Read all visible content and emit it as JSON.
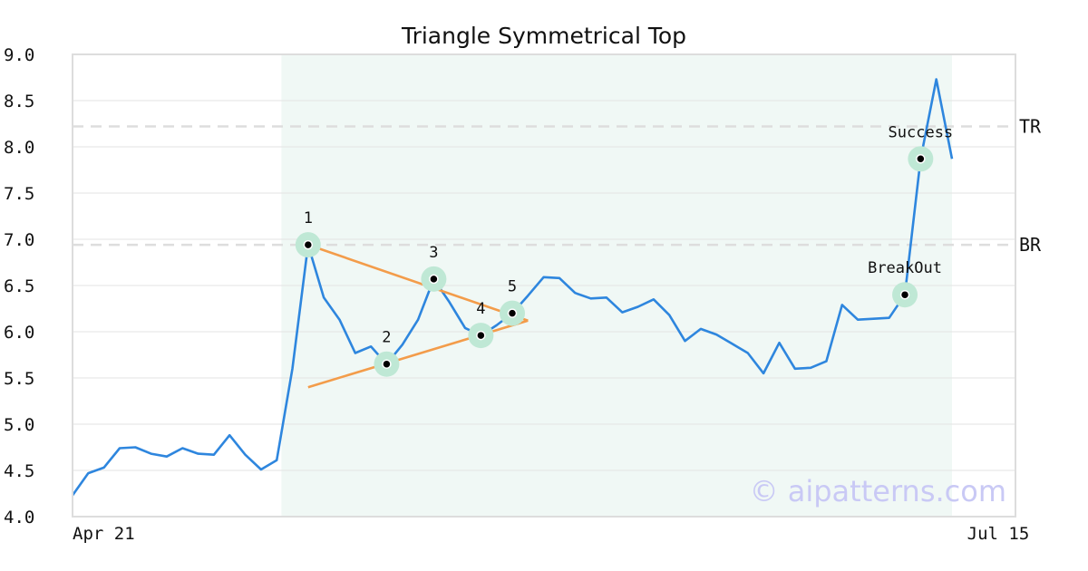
{
  "chart_data": {
    "type": "line",
    "title": "Triangle Symmetrical Top",
    "watermark": "© aipatterns.com",
    "ylim": [
      4.0,
      9.0
    ],
    "y_ticks": [
      "9.0",
      "8.5",
      "8.0",
      "7.5",
      "7.0",
      "6.5",
      "6.0",
      "5.5",
      "5.0",
      "4.5",
      "4.0"
    ],
    "x_tick_labels": [
      {
        "label": "Apr 21",
        "index": 0
      },
      {
        "label": "Jul 15",
        "index": 57
      }
    ],
    "grid": true,
    "colors": {
      "line": "#2e86de",
      "trend": "#f39c4a",
      "highlight": "#e6f3ee",
      "refline": "#dddddd",
      "marker_ring": "#bfe8d5",
      "frame": "#dddddd"
    },
    "series": [
      {
        "values": [
          4.23,
          4.47,
          4.53,
          4.74,
          4.75,
          4.68,
          4.65,
          4.74,
          4.68,
          4.67,
          4.88,
          4.67,
          4.51,
          4.61,
          5.6,
          6.94,
          6.37,
          6.13,
          5.77,
          5.84,
          5.65,
          5.86,
          6.13,
          6.57,
          6.32,
          6.04,
          5.96,
          6.07,
          6.2,
          6.39,
          6.59,
          6.58,
          6.42,
          6.36,
          6.37,
          6.21,
          6.27,
          6.35,
          6.18,
          5.9,
          6.03,
          5.97,
          5.87,
          5.77,
          5.55,
          5.88,
          5.6,
          5.61,
          5.68,
          6.29,
          6.13,
          6.14,
          6.15,
          6.4,
          7.87,
          8.73,
          7.87
        ]
      }
    ],
    "highlight_range": [
      13,
      57
    ],
    "ref_lines": [
      {
        "label": "TR",
        "value": 8.22
      },
      {
        "label": "BR",
        "value": 6.94
      }
    ],
    "trend_lines": [
      {
        "from": [
          15,
          6.94
        ],
        "to": [
          29,
          6.12
        ]
      },
      {
        "from": [
          15,
          5.4
        ],
        "to": [
          29,
          6.12
        ]
      }
    ],
    "points": [
      {
        "label": "1",
        "index": 15,
        "value": 6.94
      },
      {
        "label": "2",
        "index": 20,
        "value": 5.65
      },
      {
        "label": "3",
        "index": 23,
        "value": 6.57
      },
      {
        "label": "4",
        "index": 26,
        "value": 5.96
      },
      {
        "label": "5",
        "index": 28,
        "value": 6.2
      },
      {
        "label": "BreakOut",
        "index": 53,
        "value": 6.4
      },
      {
        "label": "Success",
        "index": 54,
        "value": 7.87
      }
    ]
  }
}
